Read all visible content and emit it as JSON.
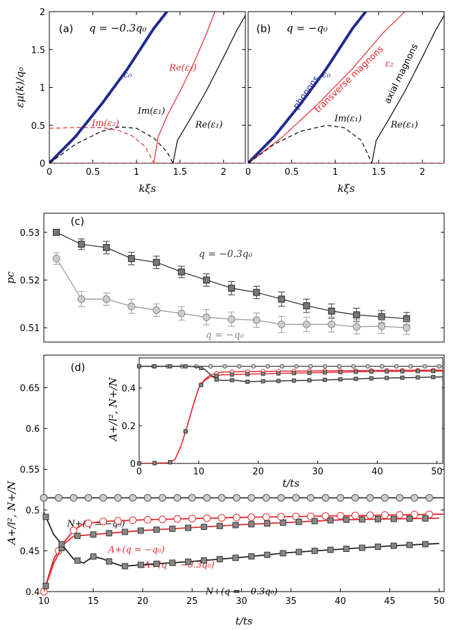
{
  "chart_data": [
    {
      "type": "line",
      "panel": "(a)",
      "title": "q = −0.3q₀",
      "xlabel": "kξs",
      "ylabel": "εμ(k)/q₀",
      "xlim": [
        0,
        2.25
      ],
      "ylim": [
        0,
        2
      ],
      "xticks": [
        "0",
        "0.5",
        "1",
        "1.5",
        "2"
      ],
      "yticks": [
        "0",
        "0.5",
        "1",
        "1.5",
        "2"
      ],
      "labels": {
        "eps0": "ε₀",
        "reeps2": "Re(ε₂)",
        "imeps1": "Im(ε₁)",
        "imeps2": "Im(ε₂)",
        "reeps1": "Re(ε₁)"
      },
      "series": [
        {
          "name": "ε₀",
          "color": "#1f2a8f",
          "x": [
            0,
            0.3,
            0.6,
            0.9,
            1.2,
            1.35
          ],
          "y": [
            0,
            0.35,
            0.78,
            1.25,
            1.78,
            2.0
          ]
        },
        {
          "name": "Re(ε₂)",
          "color": "#e3262b",
          "x": [
            1.2,
            1.25,
            1.35,
            1.5,
            1.65,
            1.8,
            1.9
          ],
          "y": [
            0,
            0.35,
            0.62,
            0.95,
            1.3,
            1.7,
            2.0
          ]
        },
        {
          "name": "Re(ε₁)",
          "color": "#000000",
          "x": [
            1.42,
            1.47,
            1.6,
            1.8,
            2.0,
            2.15,
            2.25
          ],
          "y": [
            0,
            0.3,
            0.55,
            0.95,
            1.4,
            1.75,
            1.95
          ]
        },
        {
          "name": "Im(ε₁)",
          "color": "#000000",
          "dashed": true,
          "x": [
            0,
            0.3,
            0.6,
            0.8,
            1.0,
            1.2,
            1.35,
            1.42
          ],
          "y": [
            0,
            0.25,
            0.42,
            0.48,
            0.46,
            0.33,
            0.15,
            0
          ]
        },
        {
          "name": "Im(ε₂)",
          "color": "#e3262b",
          "dashed": true,
          "x": [
            0,
            0.3,
            0.6,
            0.8,
            0.95,
            1.1,
            1.2
          ],
          "y": [
            0.46,
            0.47,
            0.47,
            0.43,
            0.36,
            0.22,
            0
          ]
        }
      ]
    },
    {
      "type": "line",
      "panel": "(b)",
      "title": "q = −q₀",
      "xlabel": "kξs",
      "xlim": [
        0,
        2.25
      ],
      "ylim": [
        0,
        2
      ],
      "xticks": [
        "0",
        "0.5",
        "1",
        "1.5",
        "2"
      ],
      "labels": {
        "eps0": "ε₀",
        "phonons": "phonons",
        "transverse": "transverse magnons",
        "eps2": "ε₂",
        "axial": "axial magnons",
        "imeps1": "Im(ε₁)",
        "reeps1": "Re(ε₁)"
      },
      "series": [
        {
          "name": "phonons",
          "color": "#1f2a8f",
          "x": [
            0,
            0.3,
            0.6,
            0.9,
            1.2,
            1.35
          ],
          "y": [
            0,
            0.35,
            0.78,
            1.25,
            1.78,
            2.0
          ]
        },
        {
          "name": "transverse magnons",
          "color": "#e3262b",
          "x": [
            0,
            0.4,
            0.8,
            1.2,
            1.55,
            1.8
          ],
          "y": [
            0,
            0.35,
            0.78,
            1.25,
            1.72,
            2.0
          ]
        },
        {
          "name": "axial magnons",
          "color": "#000000",
          "x": [
            1.42,
            1.47,
            1.6,
            1.8,
            2.0,
            2.15,
            2.25
          ],
          "y": [
            0,
            0.3,
            0.55,
            0.95,
            1.4,
            1.75,
            1.95
          ]
        },
        {
          "name": "Im(ε₁)",
          "color": "#000000",
          "dashed": true,
          "x": [
            0,
            0.3,
            0.6,
            0.9,
            1.1,
            1.3,
            1.42
          ],
          "y": [
            0,
            0.25,
            0.42,
            0.5,
            0.47,
            0.3,
            0
          ]
        }
      ]
    },
    {
      "type": "line",
      "panel": "(c)",
      "ylabel": "pc",
      "xlim": [
        0.5,
        16.5
      ],
      "ylim": [
        0.507,
        0.534
      ],
      "yticks": [
        "0.51",
        "0.52",
        "0.53"
      ],
      "series": [
        {
          "name": "q = −0.3q₀",
          "color": "#333333",
          "marker": "square",
          "values": [
            0.53,
            0.5275,
            0.5268,
            0.5245,
            0.5237,
            0.5217,
            0.52,
            0.5183,
            0.5174,
            0.516,
            0.5146,
            0.5135,
            0.5127,
            0.5123,
            0.5119
          ],
          "errors": [
            0.0006,
            0.0011,
            0.0013,
            0.0013,
            0.0013,
            0.0012,
            0.0013,
            0.0014,
            0.0013,
            0.0015,
            0.0014,
            0.0015,
            0.0014,
            0.0013,
            0.0013
          ]
        },
        {
          "name": "q = −q₀",
          "color": "#999999",
          "marker": "circle",
          "values": [
            0.5245,
            0.516,
            0.516,
            0.5145,
            0.5137,
            0.513,
            0.5122,
            0.5118,
            0.5116,
            0.5107,
            0.5107,
            0.5107,
            0.5102,
            0.5103,
            0.51
          ],
          "errors": [
            0.0012,
            0.0016,
            0.0013,
            0.0015,
            0.0013,
            0.0014,
            0.0016,
            0.0015,
            0.0015,
            0.0017,
            0.0015,
            0.0016,
            0.0015,
            0.0015,
            0.0014
          ]
        }
      ]
    },
    {
      "type": "line",
      "panel": "(d)",
      "xlabel": "t/ts",
      "ylabel": "A+/l²,  N+/N",
      "xlim": [
        10,
        50.5
      ],
      "ylim": [
        0.4,
        0.69
      ],
      "xticks": [
        "10",
        "15",
        "20",
        "25",
        "30",
        "35",
        "40",
        "45",
        "50"
      ],
      "yticks": [
        "0.4",
        "0.45",
        "0.5",
        "0.55",
        "0.6",
        "0.65"
      ],
      "labels": {
        "nq1": "N+(q = −q₀)",
        "aq1": "A+(q = −q₀)",
        "aq03": "A+(q = −0.3q₀)",
        "nq03": "N+(q = −0.3q₀)"
      },
      "series": [
        {
          "name": "N+(q = −q₀)",
          "color": "#444444",
          "marker": "circle-gray",
          "x": [
            10,
            50.5
          ],
          "y": [
            0.515,
            0.515
          ]
        },
        {
          "name": "A+(q = −q₀)",
          "color": "#e3262b",
          "marker": "circle-red",
          "x": [
            10,
            11,
            12,
            13,
            14,
            16,
            20,
            30,
            40,
            50.5
          ],
          "y": [
            0.4,
            0.44,
            0.46,
            0.475,
            0.483,
            0.486,
            0.488,
            0.491,
            0.493,
            0.495
          ]
        },
        {
          "name": "A+(q = −0.3q₀)",
          "color": "#e3262b",
          "marker": "square-gray",
          "x": [
            10,
            11,
            12,
            13,
            15,
            20,
            30,
            40,
            50
          ],
          "y": [
            0.4,
            0.435,
            0.458,
            0.468,
            0.47,
            0.475,
            0.482,
            0.488,
            0.49
          ]
        },
        {
          "name": "N+(q = −0.3q₀)",
          "color": "#222222",
          "marker": "square-gray",
          "x": [
            10,
            11,
            12,
            13,
            14,
            15,
            16,
            17,
            18,
            20,
            25,
            30,
            35,
            40,
            45,
            50
          ],
          "y": [
            0.497,
            0.47,
            0.455,
            0.44,
            0.435,
            0.443,
            0.44,
            0.435,
            0.431,
            0.433,
            0.437,
            0.442,
            0.448,
            0.452,
            0.456,
            0.459
          ]
        }
      ],
      "inset": {
        "xlabel": "t/ts",
        "ylabel": "A+/l²,  N+/N",
        "xlim": [
          0,
          51
        ],
        "ylim": [
          0,
          0.56
        ],
        "xticks": [
          "0",
          "10",
          "20",
          "30",
          "40",
          "50"
        ],
        "yticks": [
          "0",
          "0.2",
          "0.4"
        ],
        "series": [
          {
            "name": "N+(q = −q₀)",
            "color": "#555555",
            "x": [
              0,
              51
            ],
            "y": [
              0.515,
              0.515
            ]
          },
          {
            "name": "A+(q = −q₀)",
            "color": "#e3262b",
            "x": [
              0,
              5,
              6,
              7,
              8,
              9,
              10,
              11,
              12,
              14,
              20,
              30,
              40,
              51
            ],
            "y": [
              0,
              0.003,
              0.02,
              0.09,
              0.19,
              0.3,
              0.4,
              0.445,
              0.47,
              0.485,
              0.488,
              0.491,
              0.493,
              0.495
            ]
          },
          {
            "name": "A+(q = −0.3q₀)",
            "color": "#e3262b",
            "x": [
              0,
              5,
              6,
              7,
              8,
              9,
              10,
              11,
              12,
              14,
              20,
              30,
              40,
              51
            ],
            "y": [
              0,
              0.003,
              0.02,
              0.09,
              0.19,
              0.3,
              0.4,
              0.44,
              0.46,
              0.47,
              0.475,
              0.482,
              0.488,
              0.49
            ]
          },
          {
            "name": "N+(q = −0.3q₀)",
            "color": "#333333",
            "x": [
              0,
              8,
              9,
              10,
              11,
              12,
              13,
              14,
              16,
              18,
              20,
              30,
              40,
              51
            ],
            "y": [
              0.515,
              0.515,
              0.514,
              0.51,
              0.5,
              0.47,
              0.445,
              0.44,
              0.442,
              0.433,
              0.435,
              0.442,
              0.452,
              0.459
            ]
          }
        ]
      }
    }
  ]
}
